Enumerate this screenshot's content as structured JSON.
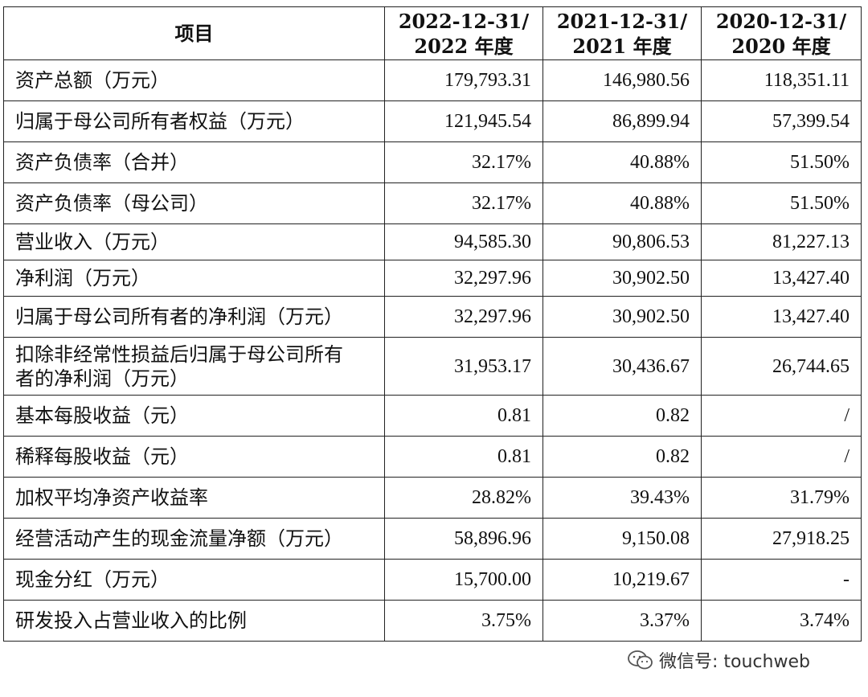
{
  "table": {
    "headers": {
      "item": "项目",
      "col1_line1": "2022-12-31/",
      "col1_line2": "2022 年度",
      "col2_line1": "2021-12-31/",
      "col2_line2": "2021 年度",
      "col3_line1": "2020-12-31/",
      "col3_line2": "2020 年度"
    },
    "rows": [
      {
        "label": "资产总额（万元）",
        "v2022": "179,793.31",
        "v2021": "146,980.56",
        "v2020": "118,351.11"
      },
      {
        "label": "归属于母公司所有者权益（万元）",
        "v2022": "121,945.54",
        "v2021": "86,899.94",
        "v2020": "57,399.54"
      },
      {
        "label": "资产负债率（合并）",
        "v2022": "32.17%",
        "v2021": "40.88%",
        "v2020": "51.50%"
      },
      {
        "label": "资产负债率（母公司）",
        "v2022": "32.17%",
        "v2021": "40.88%",
        "v2020": "51.50%"
      },
      {
        "label": "营业收入（万元）",
        "v2022": "94,585.30",
        "v2021": "90,806.53",
        "v2020": "81,227.13"
      },
      {
        "label": "净利润（万元）",
        "v2022": "32,297.96",
        "v2021": "30,902.50",
        "v2020": "13,427.40"
      },
      {
        "label": "归属于母公司所有者的净利润（万元）",
        "v2022": "32,297.96",
        "v2021": "30,902.50",
        "v2020": "13,427.40"
      },
      {
        "label": "扣除非经常性损益后归属于母公司所有者的净利润（万元）",
        "label_line1": "扣除非经常性损益后归属于母公司所有",
        "label_line2": "者的净利润（万元）",
        "v2022": "31,953.17",
        "v2021": "30,436.67",
        "v2020": "26,744.65"
      },
      {
        "label": "基本每股收益（元）",
        "v2022": "0.81",
        "v2021": "0.82",
        "v2020": "/"
      },
      {
        "label": "稀释每股收益（元）",
        "v2022": "0.81",
        "v2021": "0.82",
        "v2020": "/"
      },
      {
        "label": "加权平均净资产收益率",
        "v2022": "28.82%",
        "v2021": "39.43%",
        "v2020": "31.79%"
      },
      {
        "label": "经营活动产生的现金流量净额（万元）",
        "v2022": "58,896.96",
        "v2021": "9,150.08",
        "v2020": "27,918.25"
      },
      {
        "label": "现金分红（万元）",
        "v2022": "15,700.00",
        "v2021": "10,219.67",
        "v2020": "-"
      },
      {
        "label": "研发投入占营业收入的比例",
        "v2022": "3.75%",
        "v2021": "3.37%",
        "v2020": "3.74%"
      }
    ]
  },
  "watermark": {
    "text": "微信号: touchweb",
    "icon": "wechat-icon"
  }
}
